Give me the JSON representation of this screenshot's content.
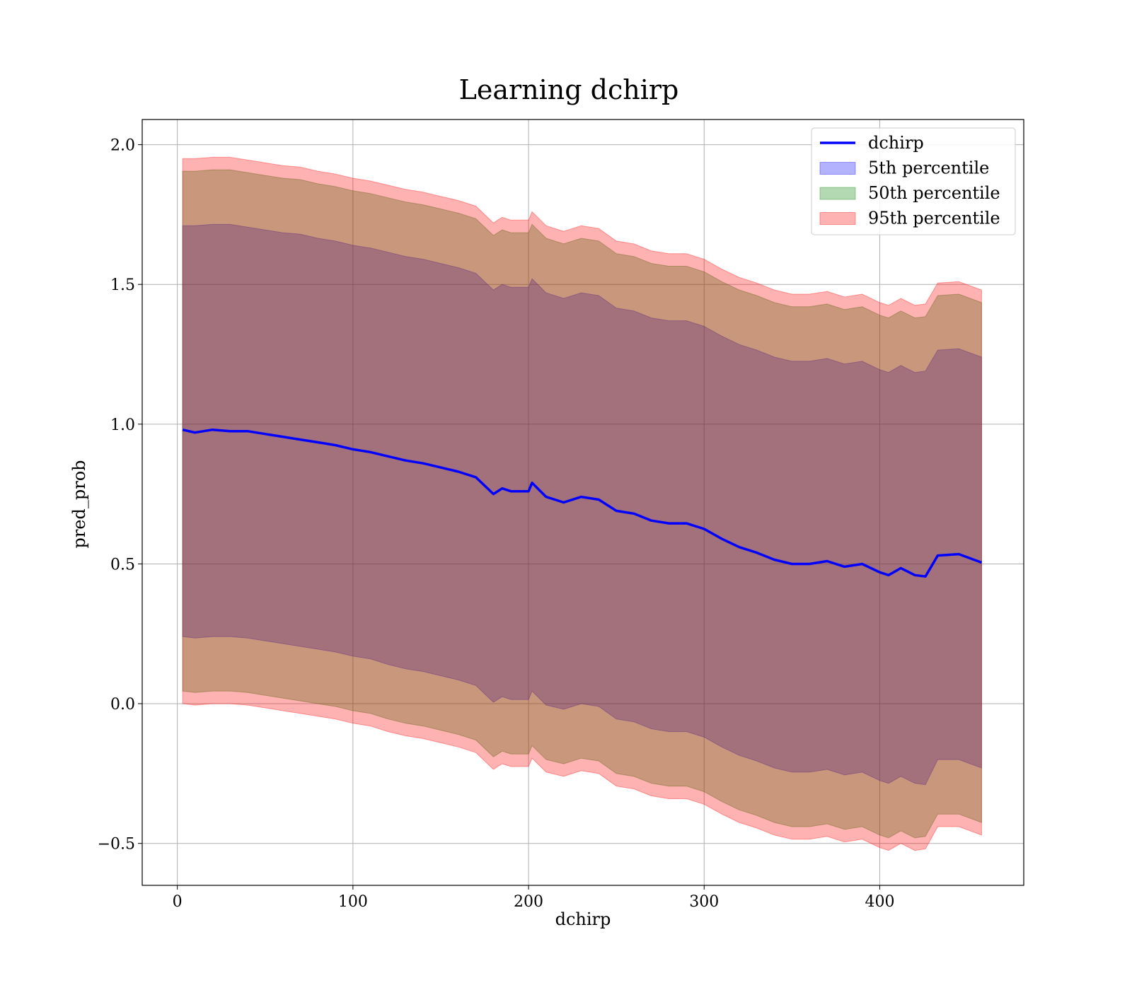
{
  "chart_data": {
    "type": "area",
    "title": "Learning dchirp",
    "xlabel": "dchirp",
    "ylabel": "pred_prob",
    "xlim": [
      -20,
      482
    ],
    "ylim": [
      -0.65,
      2.09
    ],
    "xticks": [
      0,
      100,
      200,
      300,
      400
    ],
    "yticks": [
      -0.5,
      0.0,
      0.5,
      1.0,
      1.5,
      2.0
    ],
    "xtick_labels": [
      "0",
      "100",
      "200",
      "300",
      "400"
    ],
    "ytick_labels": [
      "−0.5",
      "0.0",
      "0.5",
      "1.0",
      "1.5",
      "2.0"
    ],
    "grid": true,
    "legend_position": "upper right",
    "x": [
      3,
      10,
      20,
      30,
      40,
      50,
      60,
      70,
      80,
      90,
      100,
      110,
      120,
      130,
      140,
      150,
      160,
      170,
      180,
      185,
      190,
      200,
      202,
      210,
      220,
      230,
      240,
      250,
      260,
      270,
      280,
      290,
      300,
      310,
      320,
      330,
      340,
      350,
      360,
      370,
      380,
      390,
      400,
      405,
      412,
      420,
      426,
      433,
      445,
      458
    ],
    "series": [
      {
        "name": "dchirp",
        "kind": "line",
        "color": "#0000ff",
        "values": [
          0.98,
          0.97,
          0.98,
          0.975,
          0.975,
          0.965,
          0.955,
          0.945,
          0.935,
          0.925,
          0.91,
          0.9,
          0.885,
          0.87,
          0.86,
          0.845,
          0.83,
          0.81,
          0.75,
          0.77,
          0.76,
          0.76,
          0.79,
          0.74,
          0.72,
          0.74,
          0.73,
          0.69,
          0.68,
          0.655,
          0.645,
          0.645,
          0.625,
          0.59,
          0.56,
          0.54,
          0.515,
          0.5,
          0.5,
          0.51,
          0.49,
          0.5,
          0.47,
          0.46,
          0.485,
          0.46,
          0.455,
          0.53,
          0.535,
          0.505
        ]
      },
      {
        "name": "5th percentile",
        "kind": "band",
        "color": "#0000ff",
        "opacity": 0.3,
        "lower": [
          0.24,
          0.235,
          0.24,
          0.24,
          0.235,
          0.225,
          0.215,
          0.205,
          0.195,
          0.185,
          0.17,
          0.16,
          0.14,
          0.125,
          0.115,
          0.1,
          0.085,
          0.065,
          0.005,
          0.025,
          0.015,
          0.015,
          0.045,
          -0.005,
          -0.02,
          0.0,
          -0.01,
          -0.055,
          -0.065,
          -0.09,
          -0.1,
          -0.1,
          -0.12,
          -0.155,
          -0.185,
          -0.205,
          -0.23,
          -0.245,
          -0.245,
          -0.235,
          -0.255,
          -0.245,
          -0.275,
          -0.285,
          -0.26,
          -0.285,
          -0.29,
          -0.2,
          -0.2,
          -0.23
        ],
        "upper": [
          1.71,
          1.71,
          1.715,
          1.715,
          1.705,
          1.695,
          1.685,
          1.68,
          1.665,
          1.655,
          1.64,
          1.63,
          1.615,
          1.6,
          1.59,
          1.575,
          1.56,
          1.54,
          1.48,
          1.5,
          1.49,
          1.49,
          1.52,
          1.47,
          1.45,
          1.47,
          1.46,
          1.415,
          1.405,
          1.38,
          1.37,
          1.37,
          1.35,
          1.315,
          1.285,
          1.265,
          1.24,
          1.225,
          1.225,
          1.235,
          1.215,
          1.225,
          1.195,
          1.185,
          1.21,
          1.185,
          1.19,
          1.265,
          1.27,
          1.24
        ]
      },
      {
        "name": "50th percentile",
        "kind": "band",
        "color": "#008000",
        "opacity": 0.3,
        "lower": [
          0.045,
          0.04,
          0.045,
          0.045,
          0.04,
          0.03,
          0.02,
          0.01,
          0.0,
          -0.01,
          -0.025,
          -0.035,
          -0.055,
          -0.07,
          -0.08,
          -0.095,
          -0.11,
          -0.13,
          -0.19,
          -0.17,
          -0.18,
          -0.18,
          -0.15,
          -0.2,
          -0.215,
          -0.195,
          -0.205,
          -0.25,
          -0.26,
          -0.285,
          -0.295,
          -0.295,
          -0.315,
          -0.35,
          -0.38,
          -0.4,
          -0.425,
          -0.44,
          -0.44,
          -0.43,
          -0.45,
          -0.44,
          -0.47,
          -0.48,
          -0.455,
          -0.48,
          -0.475,
          -0.395,
          -0.395,
          -0.425
        ],
        "upper": [
          1.905,
          1.905,
          1.91,
          1.91,
          1.9,
          1.89,
          1.88,
          1.875,
          1.86,
          1.85,
          1.835,
          1.825,
          1.81,
          1.795,
          1.785,
          1.77,
          1.755,
          1.735,
          1.675,
          1.695,
          1.685,
          1.685,
          1.715,
          1.665,
          1.645,
          1.665,
          1.655,
          1.61,
          1.6,
          1.575,
          1.565,
          1.565,
          1.545,
          1.51,
          1.48,
          1.46,
          1.435,
          1.42,
          1.42,
          1.43,
          1.41,
          1.42,
          1.39,
          1.38,
          1.405,
          1.38,
          1.385,
          1.46,
          1.465,
          1.435
        ]
      },
      {
        "name": "95th percentile",
        "kind": "band",
        "color": "#ff0000",
        "opacity": 0.3,
        "lower": [
          0.0,
          -0.005,
          0.0,
          0.0,
          -0.005,
          -0.015,
          -0.025,
          -0.035,
          -0.045,
          -0.055,
          -0.07,
          -0.08,
          -0.1,
          -0.115,
          -0.125,
          -0.14,
          -0.155,
          -0.175,
          -0.235,
          -0.215,
          -0.225,
          -0.225,
          -0.195,
          -0.245,
          -0.26,
          -0.24,
          -0.25,
          -0.295,
          -0.305,
          -0.33,
          -0.34,
          -0.34,
          -0.36,
          -0.395,
          -0.425,
          -0.445,
          -0.47,
          -0.485,
          -0.485,
          -0.475,
          -0.495,
          -0.485,
          -0.515,
          -0.525,
          -0.5,
          -0.525,
          -0.52,
          -0.44,
          -0.44,
          -0.47
        ],
        "upper": [
          1.95,
          1.95,
          1.955,
          1.955,
          1.945,
          1.935,
          1.925,
          1.92,
          1.905,
          1.895,
          1.88,
          1.87,
          1.855,
          1.84,
          1.83,
          1.815,
          1.8,
          1.78,
          1.72,
          1.74,
          1.73,
          1.73,
          1.76,
          1.71,
          1.69,
          1.71,
          1.7,
          1.655,
          1.645,
          1.62,
          1.61,
          1.61,
          1.59,
          1.555,
          1.525,
          1.505,
          1.48,
          1.465,
          1.465,
          1.475,
          1.455,
          1.465,
          1.435,
          1.425,
          1.45,
          1.425,
          1.43,
          1.505,
          1.51,
          1.48
        ]
      }
    ]
  }
}
